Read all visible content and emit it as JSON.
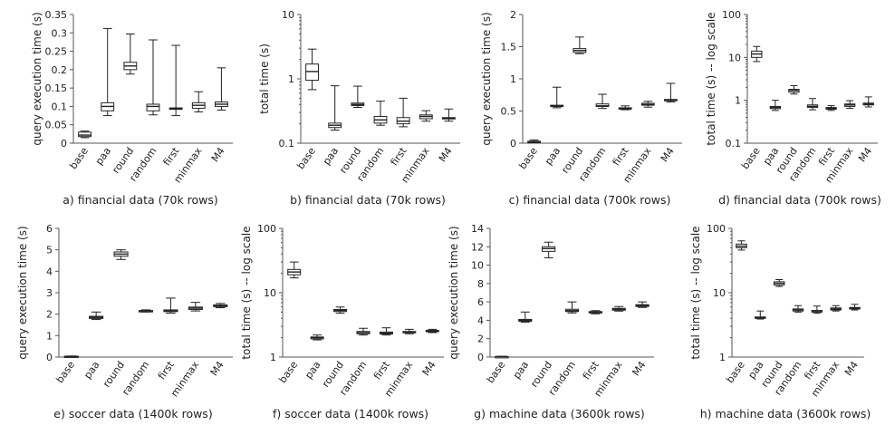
{
  "chart_data": [
    {
      "type": "box",
      "caption": "a) financial data (70k rows)",
      "ylabel": "query execution time (s)",
      "scale": "linear",
      "ylim": [
        0,
        0.35
      ],
      "yticks": [
        0,
        0.05,
        0.1,
        0.15,
        0.2,
        0.25,
        0.3,
        0.35
      ],
      "ytick_labels": [
        "0",
        "0.05",
        "0.1",
        "0.15",
        "0.2",
        "0.25",
        "0.3",
        "0.35"
      ],
      "categories": [
        "base",
        "paa",
        "round",
        "random",
        "first",
        "minmax",
        "M4"
      ],
      "boxes": [
        {
          "min": 0.015,
          "q1": 0.018,
          "median": 0.022,
          "q3": 0.03,
          "max": 0.033
        },
        {
          "min": 0.075,
          "q1": 0.088,
          "median": 0.1,
          "q3": 0.11,
          "max": 0.312
        },
        {
          "min": 0.188,
          "q1": 0.2,
          "median": 0.21,
          "q3": 0.22,
          "max": 0.297
        },
        {
          "min": 0.077,
          "q1": 0.088,
          "median": 0.1,
          "q3": 0.106,
          "max": 0.281
        },
        {
          "min": 0.075,
          "q1": 0.092,
          "median": 0.094,
          "q3": 0.096,
          "max": 0.266
        },
        {
          "min": 0.085,
          "q1": 0.095,
          "median": 0.103,
          "q3": 0.11,
          "max": 0.14
        },
        {
          "min": 0.09,
          "q1": 0.1,
          "median": 0.106,
          "q3": 0.112,
          "max": 0.205
        }
      ]
    },
    {
      "type": "box",
      "caption": "b) financial data (70k rows)",
      "ylabel": "total time (s)",
      "scale": "log",
      "ylim": [
        0.1,
        10
      ],
      "yticks": [
        0.1,
        1,
        10
      ],
      "ytick_labels": [
        "0.1",
        "1",
        "10"
      ],
      "categories": [
        "base",
        "paa",
        "round",
        "random",
        "first",
        "minmax",
        "M4"
      ],
      "boxes": [
        {
          "min": 0.68,
          "q1": 0.95,
          "median": 1.3,
          "q3": 1.7,
          "max": 2.9
        },
        {
          "min": 0.16,
          "q1": 0.175,
          "median": 0.19,
          "q3": 0.205,
          "max": 0.78
        },
        {
          "min": 0.36,
          "q1": 0.385,
          "median": 0.4,
          "q3": 0.42,
          "max": 0.77
        },
        {
          "min": 0.19,
          "q1": 0.205,
          "median": 0.23,
          "q3": 0.26,
          "max": 0.45
        },
        {
          "min": 0.18,
          "q1": 0.2,
          "median": 0.22,
          "q3": 0.25,
          "max": 0.5
        },
        {
          "min": 0.22,
          "q1": 0.24,
          "median": 0.26,
          "q3": 0.275,
          "max": 0.32
        },
        {
          "min": 0.22,
          "q1": 0.24,
          "median": 0.245,
          "q3": 0.25,
          "max": 0.34
        }
      ]
    },
    {
      "type": "box",
      "caption": "c) financial data (700k rows)",
      "ylabel": "query execution time (s)",
      "scale": "linear",
      "ylim": [
        0,
        2
      ],
      "yticks": [
        0,
        0.5,
        1,
        1.5,
        2
      ],
      "ytick_labels": [
        "0",
        "0.5",
        "1",
        "1.5",
        "2"
      ],
      "categories": [
        "base",
        "paa",
        "round",
        "random",
        "first",
        "minmax",
        "M4"
      ],
      "boxes": [
        {
          "min": 0.01,
          "q1": 0.015,
          "median": 0.02,
          "q3": 0.03,
          "max": 0.05
        },
        {
          "min": 0.55,
          "q1": 0.57,
          "median": 0.58,
          "q3": 0.59,
          "max": 0.87
        },
        {
          "min": 1.39,
          "q1": 1.41,
          "median": 1.44,
          "q3": 1.47,
          "max": 1.65
        },
        {
          "min": 0.54,
          "q1": 0.57,
          "median": 0.58,
          "q3": 0.61,
          "max": 0.76
        },
        {
          "min": 0.52,
          "q1": 0.53,
          "median": 0.54,
          "q3": 0.55,
          "max": 0.58
        },
        {
          "min": 0.56,
          "q1": 0.59,
          "median": 0.6,
          "q3": 0.62,
          "max": 0.65
        },
        {
          "min": 0.64,
          "q1": 0.66,
          "median": 0.67,
          "q3": 0.68,
          "max": 0.93
        }
      ]
    },
    {
      "type": "box",
      "caption": "d) financial data (700k rows)",
      "ylabel": "total time (s) -- log scale",
      "scale": "log",
      "ylim": [
        0.1,
        100
      ],
      "yticks": [
        0.1,
        1,
        10,
        100
      ],
      "ytick_labels": [
        "0.1",
        "1",
        "10",
        "100"
      ],
      "categories": [
        "base",
        "paa",
        "round",
        "random",
        "first",
        "minmax",
        "M4"
      ],
      "boxes": [
        {
          "min": 8.0,
          "q1": 10.0,
          "median": 12.0,
          "q3": 14.0,
          "max": 18.0
        },
        {
          "min": 0.58,
          "q1": 0.64,
          "median": 0.68,
          "q3": 0.72,
          "max": 1.0
        },
        {
          "min": 1.4,
          "q1": 1.55,
          "median": 1.7,
          "q3": 1.8,
          "max": 2.2
        },
        {
          "min": 0.6,
          "q1": 0.68,
          "median": 0.72,
          "q3": 0.78,
          "max": 1.1
        },
        {
          "min": 0.58,
          "q1": 0.62,
          "median": 0.65,
          "q3": 0.68,
          "max": 0.75
        },
        {
          "min": 0.65,
          "q1": 0.72,
          "median": 0.78,
          "q3": 0.82,
          "max": 0.98
        },
        {
          "min": 0.7,
          "q1": 0.78,
          "median": 0.82,
          "q3": 0.86,
          "max": 1.2
        }
      ]
    },
    {
      "type": "box",
      "caption": "e) soccer data (1400k rows)",
      "ylabel": "query execution time (s)",
      "scale": "linear",
      "ylim": [
        0,
        6
      ],
      "yticks": [
        0,
        1,
        2,
        3,
        4,
        5,
        6
      ],
      "ytick_labels": [
        "0",
        "1",
        "2",
        "3",
        "4",
        "5",
        "6"
      ],
      "categories": [
        "base",
        "paa",
        "round",
        "random",
        "first",
        "minmax",
        "M4"
      ],
      "boxes": [
        {
          "min": 0.01,
          "q1": 0.02,
          "median": 0.03,
          "q3": 0.04,
          "max": 0.05
        },
        {
          "min": 1.75,
          "q1": 1.8,
          "median": 1.85,
          "q3": 1.9,
          "max": 2.1
        },
        {
          "min": 4.55,
          "q1": 4.7,
          "median": 4.8,
          "q3": 4.9,
          "max": 5.0
        },
        {
          "min": 2.1,
          "q1": 2.13,
          "median": 2.15,
          "q3": 2.17,
          "max": 2.2
        },
        {
          "min": 2.05,
          "q1": 2.12,
          "median": 2.15,
          "q3": 2.2,
          "max": 2.75
        },
        {
          "min": 2.15,
          "q1": 2.22,
          "median": 2.28,
          "q3": 2.33,
          "max": 2.55
        },
        {
          "min": 2.3,
          "q1": 2.35,
          "median": 2.4,
          "q3": 2.43,
          "max": 2.5
        }
      ]
    },
    {
      "type": "box",
      "caption": "f) soccer data (1400k rows)",
      "ylabel": "total time (s) -- log scale",
      "scale": "log",
      "ylim": [
        1,
        100
      ],
      "yticks": [
        1,
        10,
        100
      ],
      "ytick_labels": [
        "1",
        "10",
        "100"
      ],
      "categories": [
        "base",
        "paa",
        "round",
        "random",
        "first",
        "minmax",
        "M4"
      ],
      "boxes": [
        {
          "min": 17.0,
          "q1": 19.0,
          "median": 21.0,
          "q3": 23.0,
          "max": 30.0
        },
        {
          "min": 1.85,
          "q1": 1.92,
          "median": 2.0,
          "q3": 2.05,
          "max": 2.2
        },
        {
          "min": 4.8,
          "q1": 5.1,
          "median": 5.3,
          "q3": 5.5,
          "max": 6.0
        },
        {
          "min": 2.2,
          "q1": 2.3,
          "median": 2.4,
          "q3": 2.5,
          "max": 2.8
        },
        {
          "min": 2.2,
          "q1": 2.28,
          "median": 2.35,
          "q3": 2.45,
          "max": 2.85
        },
        {
          "min": 2.3,
          "q1": 2.4,
          "median": 2.45,
          "q3": 2.5,
          "max": 2.7
        },
        {
          "min": 2.4,
          "q1": 2.48,
          "median": 2.55,
          "q3": 2.6,
          "max": 2.7
        }
      ]
    },
    {
      "type": "box",
      "caption": "g) machine data (3600k rows)",
      "ylabel": "query execution time (s)",
      "scale": "linear",
      "ylim": [
        0,
        14
      ],
      "yticks": [
        0,
        2,
        4,
        6,
        8,
        10,
        12,
        14
      ],
      "ytick_labels": [
        "0",
        "2",
        "4",
        "6",
        "8",
        "10",
        "12",
        "14"
      ],
      "categories": [
        "base",
        "paa",
        "round",
        "random",
        "first",
        "minmax",
        "M4"
      ],
      "boxes": [
        {
          "min": 0.02,
          "q1": 0.03,
          "median": 0.05,
          "q3": 0.06,
          "max": 0.08
        },
        {
          "min": 3.8,
          "q1": 3.9,
          "median": 4.0,
          "q3": 4.1,
          "max": 4.9
        },
        {
          "min": 10.8,
          "q1": 11.5,
          "median": 11.8,
          "q3": 12.0,
          "max": 12.5
        },
        {
          "min": 4.8,
          "q1": 4.95,
          "median": 5.05,
          "q3": 5.2,
          "max": 6.0
        },
        {
          "min": 4.7,
          "q1": 4.8,
          "median": 4.9,
          "q3": 4.95,
          "max": 5.05
        },
        {
          "min": 5.0,
          "q1": 5.1,
          "median": 5.2,
          "q3": 5.3,
          "max": 5.5
        },
        {
          "min": 5.4,
          "q1": 5.5,
          "median": 5.6,
          "q3": 5.7,
          "max": 6.0
        }
      ]
    },
    {
      "type": "box",
      "caption": "h) machine data (3600k rows)",
      "ylabel": "total time (s) -- log scale",
      "scale": "log",
      "ylim": [
        1,
        100
      ],
      "yticks": [
        1,
        10,
        100
      ],
      "ytick_labels": [
        "1",
        "10",
        "100"
      ],
      "categories": [
        "base",
        "paa",
        "round",
        "random",
        "first",
        "minmax",
        "M4"
      ],
      "boxes": [
        {
          "min": 46.0,
          "q1": 50.0,
          "median": 53.0,
          "q3": 57.0,
          "max": 64.0
        },
        {
          "min": 3.9,
          "q1": 4.0,
          "median": 4.1,
          "q3": 4.2,
          "max": 5.2
        },
        {
          "min": 12.5,
          "q1": 13.2,
          "median": 14.0,
          "q3": 14.8,
          "max": 16.0
        },
        {
          "min": 5.0,
          "q1": 5.2,
          "median": 5.4,
          "q3": 5.6,
          "max": 6.3
        },
        {
          "min": 4.8,
          "q1": 5.0,
          "median": 5.2,
          "q3": 5.3,
          "max": 6.2
        },
        {
          "min": 5.2,
          "q1": 5.4,
          "median": 5.6,
          "q3": 5.8,
          "max": 6.3
        },
        {
          "min": 5.4,
          "q1": 5.6,
          "median": 5.8,
          "q3": 5.9,
          "max": 6.6
        }
      ]
    }
  ]
}
